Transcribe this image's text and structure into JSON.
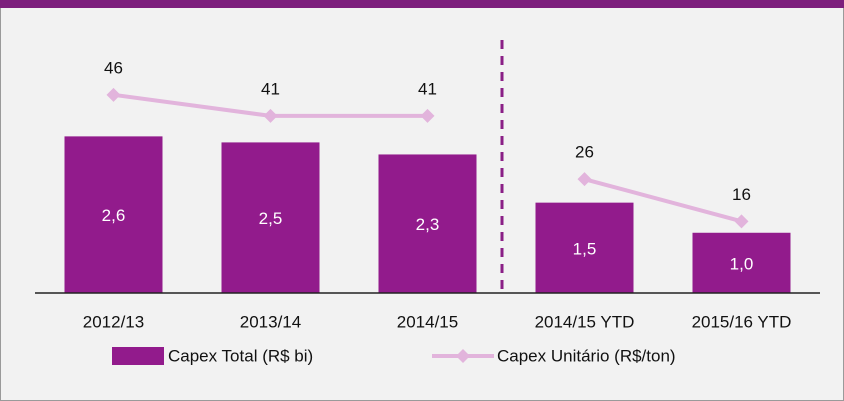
{
  "chart_data": {
    "type": "bar",
    "categories": [
      "2012/13",
      "2013/14",
      "2014/15",
      "2014/15 YTD",
      "2015/16 YTD"
    ],
    "series": [
      {
        "name": "Capex Total (R$ bi)",
        "type": "bar",
        "color": "#921b8c",
        "values": [
          2.6,
          2.5,
          2.3,
          1.5,
          1.0
        ],
        "value_labels": [
          "2,6",
          "2,5",
          "2,3",
          "1,5",
          "1,0"
        ]
      },
      {
        "name": "Capex Unitário (R$/ton)",
        "type": "line",
        "axis": "y2",
        "color": "#e2b4dc",
        "values": [
          46,
          41,
          41,
          26,
          16
        ]
      }
    ],
    "ylim": [
      0,
      4.2
    ],
    "y2lim": [
      -1,
      59
    ]
  }
}
